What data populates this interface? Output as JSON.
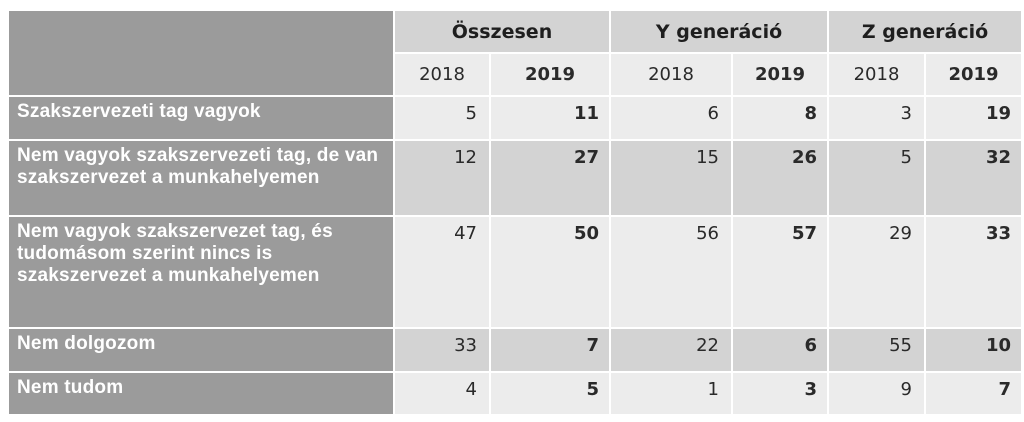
{
  "header": {
    "groups": [
      "Összesen",
      "Y generáció",
      "Z generáció"
    ],
    "years": [
      "2018",
      "2019",
      "2018",
      "2019",
      "2018",
      "2019"
    ]
  },
  "rows": [
    {
      "label": "Szakszervezeti tag vagyok",
      "values": [
        "5",
        "11",
        "6",
        "8",
        "3",
        "19"
      ]
    },
    {
      "label": "Nem vagyok szakszervezeti tag, de van szakszervezet a munkahelyemen",
      "values": [
        "12",
        "27",
        "15",
        "26",
        "5",
        "32"
      ]
    },
    {
      "label": "Nem vagyok szakszervezet tag, és tudomásom szerint nincs is szakszervezet a munkahelyemen",
      "values": [
        "47",
        "50",
        "56",
        "57",
        "29",
        "33"
      ]
    },
    {
      "label": "Nem dolgozom",
      "values": [
        "33",
        "7",
        "22",
        "6",
        "55",
        "10"
      ]
    },
    {
      "label": "Nem tudom",
      "values": [
        "4",
        "5",
        "1",
        "3",
        "9",
        "7"
      ]
    }
  ],
  "colors": {
    "label_bg": "#9b9b9b",
    "group_bg": "#d3d3d3",
    "light_bg": "#ececec",
    "mid_bg": "#d3d3d3"
  }
}
